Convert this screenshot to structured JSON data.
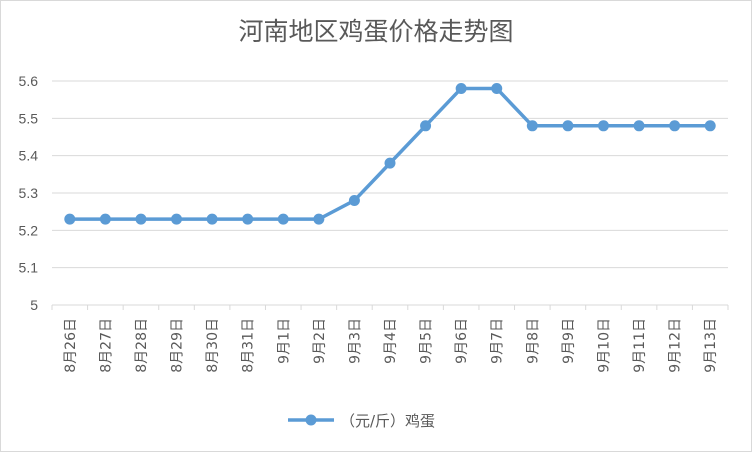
{
  "chart_data": {
    "type": "line",
    "title": "河南地区鸡蛋价格走势图",
    "xlabel": "",
    "ylabel": "",
    "ylim": [
      5,
      5.6
    ],
    "yticks": [
      "5",
      "5.1",
      "5.2",
      "5.3",
      "5.4",
      "5.5",
      "5.6"
    ],
    "grid": true,
    "legend_position": "bottom",
    "categories": [
      "8月26日",
      "8月27日",
      "8月28日",
      "8月29日",
      "8月30日",
      "8月31日",
      "9月1日",
      "9月2日",
      "9月3日",
      "9月4日",
      "9月5日",
      "9月6日",
      "9月7日",
      "9月8日",
      "9月9日",
      "9月10日",
      "9月11日",
      "9月12日",
      "9月13日"
    ],
    "series": [
      {
        "name": "（元/斤）鸡蛋",
        "color": "#5b9bd5",
        "values": [
          5.23,
          5.23,
          5.23,
          5.23,
          5.23,
          5.23,
          5.23,
          5.23,
          5.28,
          5.38,
          5.48,
          5.58,
          5.58,
          5.48,
          5.48,
          5.48,
          5.48,
          5.48,
          5.48
        ]
      }
    ]
  }
}
